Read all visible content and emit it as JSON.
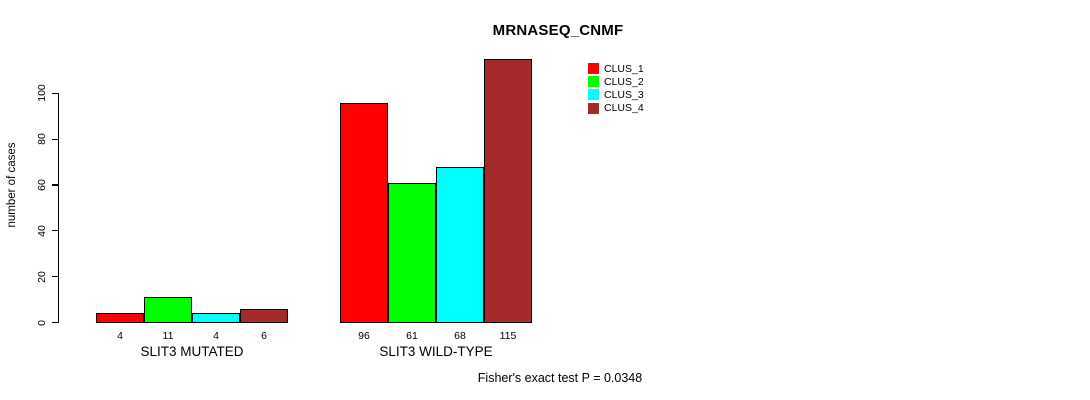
{
  "chart_data": {
    "type": "bar",
    "title": "MRNASEQ_CNMF",
    "xlabel": "",
    "ylabel": "number of cases",
    "ylim": [
      0,
      115
    ],
    "yticks": [
      0,
      20,
      40,
      60,
      80,
      100
    ],
    "grid": false,
    "legend_position": "top-right",
    "categories": [
      "SLIT3 MUTATED",
      "SLIT3 WILD-TYPE"
    ],
    "series": [
      {
        "name": "CLUS_1",
        "color": "#FF0000",
        "values": [
          4,
          96
        ]
      },
      {
        "name": "CLUS_2",
        "color": "#00FF00",
        "values": [
          11,
          61
        ]
      },
      {
        "name": "CLUS_3",
        "color": "#00FFFF",
        "values": [
          4,
          68
        ]
      },
      {
        "name": "CLUS_4",
        "color": "#A52A2A",
        "values": [
          6,
          115
        ]
      }
    ],
    "bar_value_labels_shown": true,
    "annotation": "Fisher's exact test P = 0.0348"
  },
  "colors": {
    "background": "#FFFFFF",
    "axis": "#000000",
    "text": "#000000"
  }
}
